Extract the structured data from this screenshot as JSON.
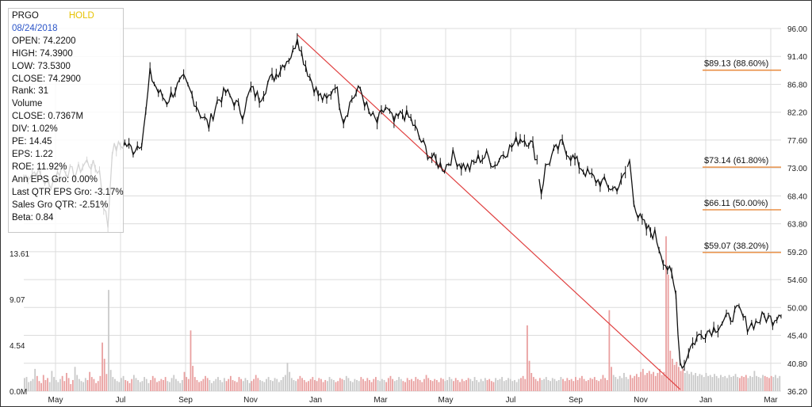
{
  "info": {
    "symbol": "PRGO",
    "signal": "HOLD",
    "date": "08/24/2018",
    "rows": [
      "OPEN: 74.2200",
      "HIGH: 74.3900",
      "LOW: 73.5300",
      "CLOSE: 74.2900",
      "Rank: 31",
      "Volume",
      "CLOSE: 0.7367M",
      "DIV: 1.02%",
      "PE: 14.45",
      "EPS: 1.22",
      "ROE: 11.92%",
      "Ann EPS Gro: 0.00%",
      "Last QTR EPS Gro: -3.17%",
      "Sales Gro QTR: -2.51%",
      "Beta: 0.84"
    ]
  },
  "colors": {
    "price": "#111111",
    "trend": "#e04040",
    "fib": "#e8893a",
    "volume_up": "#c9c9c9",
    "volume_down": "#e9a0a0",
    "grid": "#dcdcdc"
  },
  "chart_data": {
    "type": "line",
    "title": "",
    "price_axis": {
      "min": 36.2,
      "max": 96.0,
      "ticks": [
        "96.00",
        "91.40",
        "86.80",
        "82.20",
        "77.60",
        "73.00",
        "68.40",
        "63.80",
        "59.20",
        "54.60",
        "50.00",
        "45.40",
        "40.80",
        "36.20"
      ]
    },
    "volume_axis": {
      "unit": "M",
      "ticks": [
        "13.61",
        "9.07",
        "4.54",
        "0.0M"
      ],
      "tick_values": [
        13.61,
        9.07,
        4.54,
        0
      ]
    },
    "x_axis": {
      "labels": [
        "May",
        "Jul",
        "Sep",
        "Nov",
        "Jan",
        "Mar",
        "May",
        "Jul",
        "Sep",
        "Nov",
        "Jan",
        "Mar"
      ]
    },
    "price_series": {
      "name": "",
      "points": [
        [
          0,
          71.5
        ],
        [
          6,
          72.5
        ],
        [
          12,
          70.0
        ],
        [
          18,
          73.0
        ],
        [
          24,
          72.0
        ],
        [
          30,
          74.0
        ],
        [
          36,
          72.5
        ],
        [
          38,
          67.0
        ],
        [
          40,
          63.5
        ],
        [
          42,
          76.0
        ],
        [
          48,
          77.0
        ],
        [
          52,
          76.0
        ],
        [
          56,
          77.5
        ],
        [
          58,
          82.0
        ],
        [
          60,
          88.5
        ],
        [
          64,
          85.5
        ],
        [
          68,
          84.0
        ],
        [
          72,
          86.0
        ],
        [
          76,
          87.5
        ],
        [
          80,
          85.0
        ],
        [
          84,
          82.0
        ],
        [
          88,
          80.0
        ],
        [
          92,
          84.0
        ],
        [
          96,
          85.5
        ],
        [
          100,
          84.0
        ],
        [
          104,
          82.0
        ],
        [
          108,
          86.0
        ],
        [
          112,
          84.5
        ],
        [
          116,
          87.0
        ],
        [
          120,
          88.5
        ],
        [
          124,
          90.5
        ],
        [
          128,
          92.0
        ],
        [
          130,
          95.0
        ],
        [
          132,
          92.0
        ],
        [
          136,
          88.0
        ],
        [
          140,
          85.0
        ],
        [
          144,
          84.0
        ],
        [
          148,
          87.0
        ],
        [
          152,
          81.0
        ],
        [
          156,
          84.5
        ],
        [
          160,
          86.0
        ],
        [
          164,
          82.0
        ],
        [
          168,
          80.5
        ],
        [
          172,
          83.0
        ],
        [
          176,
          80.5
        ],
        [
          180,
          82.0
        ],
        [
          184,
          81.0
        ],
        [
          188,
          78.0
        ],
        [
          192,
          75.5
        ],
        [
          196,
          74.0
        ],
        [
          200,
          73.0
        ],
        [
          204,
          75.0
        ],
        [
          208,
          73.5
        ],
        [
          212,
          73.0
        ],
        [
          216,
          74.5
        ],
        [
          220,
          75.0
        ],
        [
          224,
          73.5
        ],
        [
          228,
          75.5
        ],
        [
          232,
          76.5
        ],
        [
          236,
          78.0
        ],
        [
          240,
          77.5
        ],
        [
          242,
          76.5
        ],
        [
          244,
          74.3
        ],
        [
          246,
          69.0
        ],
        [
          248,
          73.0
        ],
        [
          252,
          75.5
        ],
        [
          256,
          77.0
        ],
        [
          260,
          75.0
        ],
        [
          264,
          73.5
        ],
        [
          268,
          72.0
        ],
        [
          272,
          71.0
        ],
        [
          276,
          70.5
        ],
        [
          280,
          69.5
        ],
        [
          284,
          70.5
        ],
        [
          288,
          74.0
        ],
        [
          290,
          68.0
        ],
        [
          292,
          65.0
        ],
        [
          296,
          63.0
        ],
        [
          300,
          62.0
        ],
        [
          304,
          58.0
        ],
        [
          308,
          55.0
        ],
        [
          310,
          52.0
        ],
        [
          312,
          41.0
        ],
        [
          314,
          40.5
        ],
        [
          316,
          43.0
        ],
        [
          320,
          45.0
        ],
        [
          324,
          46.0
        ],
        [
          328,
          46.5
        ],
        [
          332,
          47.5
        ],
        [
          336,
          48.5
        ],
        [
          340,
          49.5
        ],
        [
          344,
          47.0
        ],
        [
          348,
          47.5
        ],
        [
          352,
          48.5
        ],
        [
          356,
          48.0
        ],
        [
          360,
          49.5
        ]
      ]
    },
    "volume_series": {
      "name": "",
      "values": [
        1.3,
        1.4,
        0.9,
        1.0,
        1.2,
        2.2,
        1.5,
        1.0,
        0.8,
        1.6,
        1.1,
        1.3,
        0.9,
        2.0,
        1.4,
        1.1,
        0.9,
        1.2,
        1.5,
        1.0,
        1.8,
        1.3,
        0.7,
        1.1,
        2.4,
        1.6,
        1.2,
        1.0,
        0.9,
        1.3,
        1.1,
        1.9,
        1.4,
        1.2,
        0.8,
        1.0,
        1.5,
        4.8,
        3.2,
        1.7,
        10.0,
        2.1,
        1.4,
        1.2,
        1.0,
        0.9,
        1.3,
        1.5,
        1.1,
        1.0,
        0.8,
        1.2,
        1.6,
        1.3,
        1.1,
        0.9,
        1.0,
        1.4,
        1.2,
        0.8,
        1.1,
        1.5,
        1.3,
        0.9,
        1.0,
        1.2,
        1.1,
        1.4,
        1.0,
        0.9,
        1.3,
        1.6,
        1.2,
        1.0,
        0.8,
        1.1,
        1.9,
        1.4,
        1.2,
        6.0,
        2.5,
        1.4,
        1.1,
        0.9,
        1.0,
        1.2,
        1.5,
        1.3,
        1.1,
        0.8,
        1.0,
        1.2,
        1.4,
        1.1,
        0.9,
        1.3,
        1.0,
        1.2,
        1.5,
        1.1,
        1.0,
        0.9,
        1.4,
        1.2,
        1.0,
        1.3,
        1.1,
        0.8,
        1.0,
        1.2,
        1.6,
        1.3,
        1.1,
        1.0,
        0.9,
        1.2,
        1.4,
        1.1,
        1.0,
        1.3,
        1.2,
        0.9,
        1.1,
        1.4,
        1.6,
        2.8,
        1.9,
        1.3,
        1.1,
        1.0,
        1.2,
        1.5,
        1.3,
        1.1,
        0.9,
        1.0,
        1.2,
        1.4,
        1.1,
        1.0,
        1.3,
        1.2,
        0.9,
        1.1,
        1.0,
        1.4,
        1.2,
        1.1,
        0.9,
        1.0,
        1.3,
        1.2,
        1.1,
        1.5,
        1.3,
        1.0,
        0.9,
        1.2,
        1.1,
        1.0,
        1.4,
        1.2,
        1.0,
        1.3,
        1.1,
        0.9,
        1.2,
        1.4,
        1.1,
        1.0,
        1.2,
        1.1,
        0.9,
        1.3,
        1.5,
        1.2,
        1.0,
        1.1,
        1.4,
        1.2,
        1.0,
        0.9,
        1.3,
        1.1,
        1.2,
        1.0,
        1.4,
        1.2,
        1.1,
        0.9,
        1.2,
        1.6,
        1.3,
        1.1,
        1.0,
        1.2,
        1.1,
        0.9,
        1.3,
        1.2,
        1.0,
        1.1,
        1.4,
        1.2,
        1.0,
        1.3,
        1.1,
        0.9,
        1.2,
        1.0,
        1.1,
        1.3,
        1.2,
        1.0,
        1.4,
        1.1,
        0.9,
        1.2,
        1.0,
        1.3,
        1.1,
        1.2,
        1.0,
        0.9,
        1.3,
        1.1,
        1.2,
        1.4,
        1.0,
        1.1,
        1.3,
        1.2,
        1.0,
        1.1,
        0.9,
        1.2,
        1.3,
        1.5,
        1.2,
        6.5,
        3.0,
        1.8,
        1.4,
        1.2,
        1.0,
        1.3,
        1.1,
        1.2,
        1.4,
        1.1,
        1.0,
        1.3,
        1.2,
        1.0,
        1.1,
        1.4,
        1.2,
        1.0,
        1.3,
        1.1,
        1.2,
        1.0,
        1.4,
        1.1,
        1.3,
        1.5,
        1.2,
        1.0,
        1.1,
        1.3,
        1.2,
        1.4,
        1.1,
        1.0,
        1.2,
        1.6,
        1.3,
        1.1,
        8.0,
        2.4,
        1.6,
        1.4,
        1.2,
        1.5,
        1.3,
        1.8,
        1.4,
        1.2,
        1.6,
        1.3,
        1.5,
        1.7,
        1.4,
        1.9,
        2.2,
        1.6,
        1.8,
        2.0,
        1.7,
        1.9,
        1.5,
        1.8,
        2.2,
        1.6,
        1.9,
        15.3,
        11.5,
        4.0,
        3.2,
        2.6,
        2.9,
        2.4,
        2.0,
        2.2,
        1.8,
        2.0,
        1.7,
        1.9,
        1.6,
        1.8,
        1.5,
        1.7,
        1.6,
        1.4,
        1.8,
        1.5,
        1.6,
        1.4,
        1.7,
        1.5,
        1.3,
        1.6,
        1.4,
        1.5,
        1.3,
        1.6,
        1.4,
        1.5,
        1.7,
        1.4,
        1.3,
        1.5,
        1.4,
        1.6,
        1.3,
        1.5,
        1.4,
        2.0,
        1.5,
        1.4,
        1.3,
        1.6,
        1.5,
        1.4,
        1.3,
        1.5,
        1.4,
        1.6,
        1.3,
        1.5
      ]
    },
    "trend_line": {
      "from": [
        130,
        95.0
      ],
      "to": [
        312,
        36.5
      ]
    },
    "fibonacci": [
      {
        "label": "$89.13 (88.60%)",
        "value": 89.13
      },
      {
        "label": "$73.14 (61.80%)",
        "value": 73.14
      },
      {
        "label": "$66.11 (50.00%)",
        "value": 66.11
      },
      {
        "label": "$59.07 (38.20%)",
        "value": 59.07
      }
    ]
  }
}
